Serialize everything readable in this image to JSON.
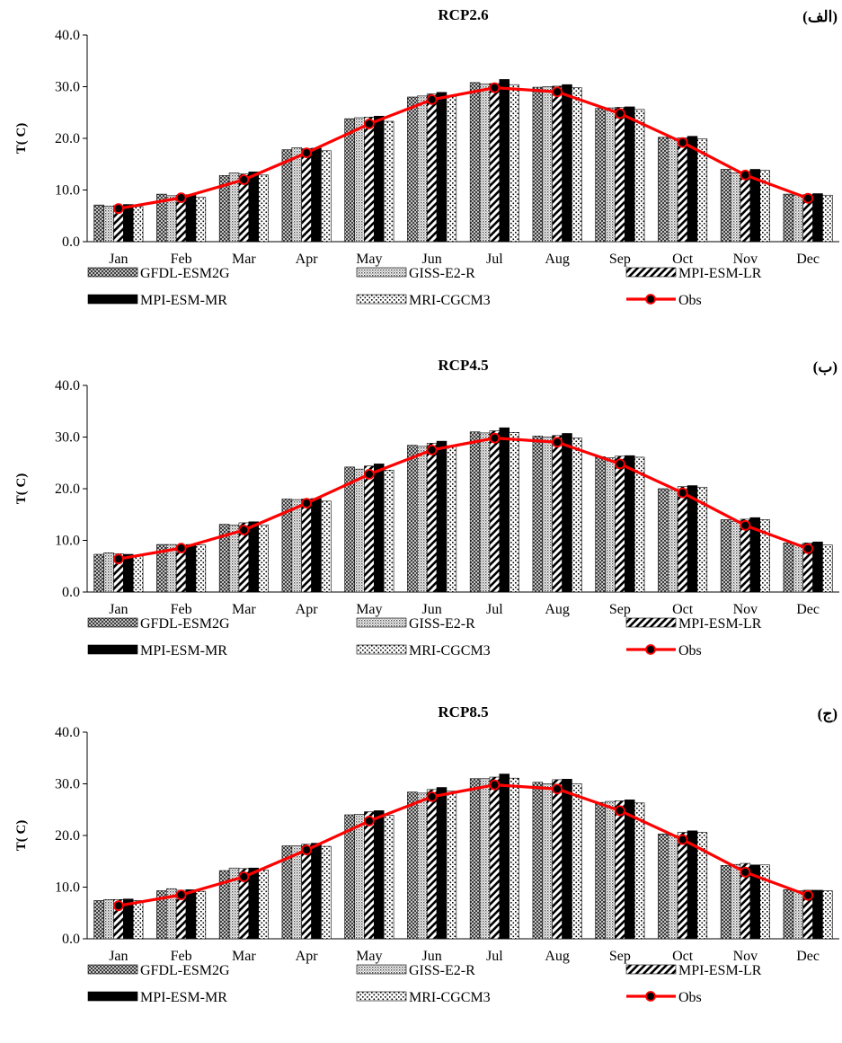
{
  "chart_data": [
    {
      "type": "bar",
      "title": "RCP2.6",
      "panel_label": "(الف)",
      "ylabel": "T( C)",
      "ylim": [
        0,
        40
      ],
      "yticks": [
        "0.0",
        "10.0",
        "20.0",
        "30.0",
        "40.0"
      ],
      "categories": [
        "Jan",
        "Feb",
        "Mar",
        "Apr",
        "May",
        "Jun",
        "Jul",
        "Aug",
        "Sep",
        "Oct",
        "Nov",
        "Dec"
      ],
      "series": [
        {
          "name": "GFDL-ESM2G",
          "values": [
            7.1,
            9.2,
            12.8,
            17.8,
            23.8,
            28.0,
            30.8,
            29.9,
            25.8,
            20.2,
            14.0,
            9.2
          ]
        },
        {
          "name": "GISS-E2-R",
          "values": [
            6.9,
            8.9,
            13.3,
            18.2,
            24.0,
            28.2,
            30.5,
            30.0,
            25.9,
            20.0,
            13.3,
            9.0
          ]
        },
        {
          "name": "MPI-ESM-LR",
          "values": [
            7.0,
            9.0,
            13.1,
            18.0,
            24.1,
            28.6,
            30.6,
            30.1,
            26.0,
            20.1,
            13.6,
            9.1
          ]
        },
        {
          "name": "MPI-ESM-MR",
          "values": [
            7.2,
            9.1,
            13.5,
            18.1,
            24.3,
            28.9,
            31.4,
            30.4,
            26.1,
            20.4,
            14.0,
            9.3
          ]
        },
        {
          "name": "MRI-CGCM3",
          "values": [
            6.8,
            8.6,
            12.9,
            17.6,
            23.3,
            28.1,
            30.4,
            29.8,
            25.6,
            19.9,
            13.8,
            9.0
          ]
        }
      ],
      "obs": {
        "name": "Obs",
        "values": [
          6.4,
          8.5,
          12.0,
          17.2,
          22.8,
          27.5,
          29.8,
          29.0,
          24.8,
          19.2,
          12.9,
          8.4
        ]
      },
      "legend": [
        "GFDL-ESM2G",
        "GISS-E2-R",
        "MPI-ESM-LR",
        "MPI-ESM-MR",
        "MRI-CGCM3",
        "Obs"
      ],
      "legend_position": "bottom",
      "grid": false,
      "colors": {
        "obs_line": "#ff0000",
        "obs_marker": "#000000",
        "bar_edge": "#000000"
      }
    },
    {
      "type": "bar",
      "title": "RCP4.5",
      "panel_label": "(ب)",
      "ylabel": "T( C)",
      "ylim": [
        0,
        40
      ],
      "yticks": [
        "0.0",
        "10.0",
        "20.0",
        "30.0",
        "40.0"
      ],
      "categories": [
        "Jan",
        "Feb",
        "Mar",
        "Apr",
        "May",
        "Jun",
        "Jul",
        "Aug",
        "Sep",
        "Oct",
        "Nov",
        "Dec"
      ],
      "series": [
        {
          "name": "GFDL-ESM2G",
          "values": [
            7.3,
            9.2,
            13.1,
            18.0,
            24.2,
            28.4,
            31.0,
            30.2,
            26.2,
            20.0,
            14.0,
            9.5
          ]
        },
        {
          "name": "GISS-E2-R",
          "values": [
            7.6,
            9.2,
            13.0,
            17.9,
            23.8,
            28.2,
            30.8,
            30.0,
            26.0,
            19.8,
            13.7,
            9.2
          ]
        },
        {
          "name": "MPI-ESM-LR",
          "values": [
            7.4,
            9.0,
            13.4,
            18.0,
            24.4,
            28.8,
            31.2,
            30.3,
            26.3,
            20.4,
            14.1,
            9.5
          ]
        },
        {
          "name": "MPI-ESM-MR",
          "values": [
            7.3,
            9.2,
            13.6,
            18.1,
            24.8,
            29.2,
            31.8,
            30.7,
            26.4,
            20.6,
            14.4,
            9.7
          ]
        },
        {
          "name": "MRI-CGCM3",
          "values": [
            7.0,
            9.1,
            13.0,
            17.6,
            23.6,
            28.3,
            30.9,
            29.8,
            26.1,
            20.3,
            14.0,
            9.1
          ]
        }
      ],
      "obs": {
        "name": "Obs",
        "values": [
          6.4,
          8.5,
          12.0,
          17.2,
          22.8,
          27.5,
          29.8,
          29.0,
          24.8,
          19.2,
          12.9,
          8.4
        ]
      },
      "legend": [
        "GFDL-ESM2G",
        "GISS-E2-R",
        "MPI-ESM-LR",
        "MPI-ESM-MR",
        "MRI-CGCM3",
        "Obs"
      ],
      "legend_position": "bottom",
      "grid": false,
      "colors": {
        "obs_line": "#ff0000",
        "obs_marker": "#000000",
        "bar_edge": "#000000"
      }
    },
    {
      "type": "bar",
      "title": "RCP8.5",
      "panel_label": "(ج)",
      "ylabel": "T( C)",
      "ylim": [
        0,
        40
      ],
      "yticks": [
        "0.0",
        "10.0",
        "20.0",
        "30.0",
        "40.0"
      ],
      "categories": [
        "Jan",
        "Feb",
        "Mar",
        "Apr",
        "May",
        "Jun",
        "Jul",
        "Aug",
        "Sep",
        "Oct",
        "Nov",
        "Dec"
      ],
      "series": [
        {
          "name": "GFDL-ESM2G",
          "values": [
            7.4,
            9.3,
            13.2,
            18.0,
            24.0,
            28.4,
            31.0,
            30.3,
            26.4,
            20.3,
            14.2,
            9.5
          ]
        },
        {
          "name": "GISS-E2-R",
          "values": [
            7.6,
            9.7,
            13.7,
            18.0,
            24.1,
            28.2,
            31.0,
            30.0,
            26.6,
            20.0,
            14.4,
            9.3
          ]
        },
        {
          "name": "MPI-ESM-LR",
          "values": [
            7.6,
            9.4,
            13.6,
            18.3,
            24.6,
            28.9,
            31.3,
            30.8,
            26.7,
            20.6,
            14.6,
            9.4
          ]
        },
        {
          "name": "MPI-ESM-MR",
          "values": [
            7.7,
            9.5,
            13.7,
            18.5,
            24.8,
            29.3,
            31.9,
            30.9,
            26.9,
            20.9,
            14.3,
            9.4
          ]
        },
        {
          "name": "MRI-CGCM3",
          "values": [
            7.4,
            9.2,
            13.3,
            17.9,
            23.9,
            28.6,
            31.1,
            30.0,
            26.3,
            20.6,
            14.3,
            9.3
          ]
        }
      ],
      "obs": {
        "name": "Obs",
        "values": [
          6.4,
          8.5,
          12.0,
          17.2,
          22.8,
          27.5,
          29.8,
          29.0,
          24.8,
          19.2,
          12.9,
          8.4
        ]
      },
      "legend": [
        "GFDL-ESM2G",
        "GISS-E2-R",
        "MPI-ESM-LR",
        "MPI-ESM-MR",
        "MRI-CGCM3",
        "Obs"
      ],
      "legend_position": "bottom",
      "grid": false,
      "colors": {
        "obs_line": "#ff0000",
        "obs_marker": "#000000",
        "bar_edge": "#000000"
      }
    }
  ]
}
